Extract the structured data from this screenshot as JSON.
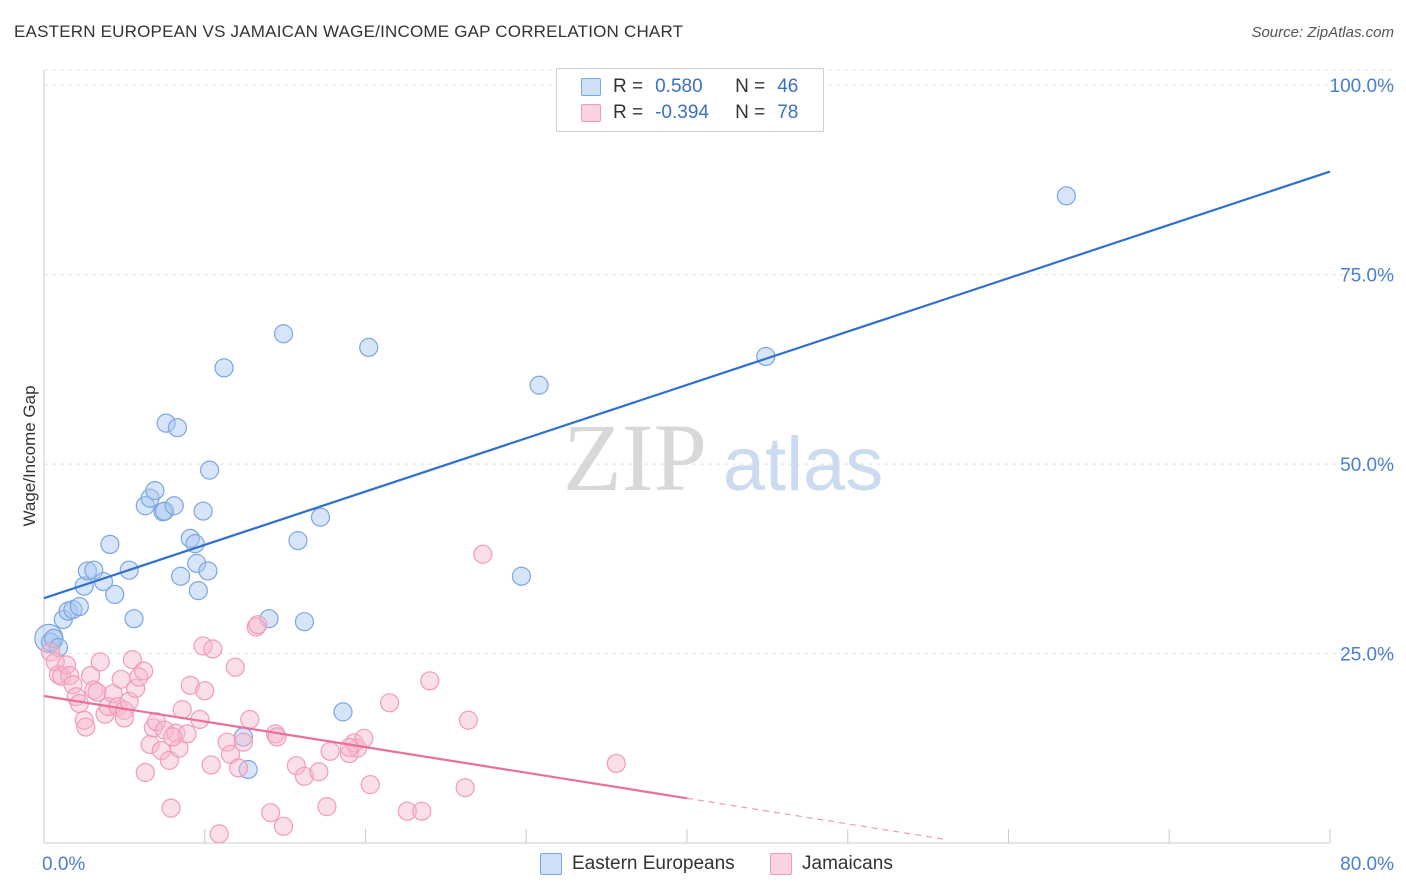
{
  "header": {
    "title": "EASTERN EUROPEAN VS JAMAICAN WAGE/INCOME GAP CORRELATION CHART",
    "source": "Source: ZipAtlas.com"
  },
  "watermark": {
    "zip": "ZIP",
    "atlas": "atlas"
  },
  "legend": {
    "rows": [
      {
        "r_label": "R =",
        "r_value": "0.580",
        "n_label": "N =",
        "n_value": "46",
        "color": "#a9c6ef"
      },
      {
        "r_label": "R =",
        "r_value": "-0.394",
        "n_label": "N =",
        "n_value": "78",
        "color": "#f6b9cc"
      }
    ]
  },
  "bottom_legend": [
    {
      "label": "Eastern Europeans",
      "color": "#a9c6ef"
    },
    {
      "label": "Jamaicans",
      "color": "#f6b9cc"
    }
  ],
  "chart_data": {
    "type": "scatter",
    "title": "EASTERN EUROPEAN VS JAMAICAN WAGE/INCOME GAP CORRELATION CHART",
    "xlabel": "",
    "ylabel": "Wage/Income Gap",
    "xlim": [
      0,
      80
    ],
    "ylim": [
      0,
      102
    ],
    "x_tick_labels": [
      "0.0%",
      "80.0%"
    ],
    "y_ticks": [
      25,
      50,
      75,
      100
    ],
    "y_tick_labels": [
      "25.0%",
      "50.0%",
      "75.0%",
      "100.0%"
    ],
    "grid": true,
    "legend_position": "top-center",
    "series": [
      {
        "name": "Eastern Europeans",
        "color": "#7aa6e2",
        "line_color": "#2f6fce",
        "trend": {
          "x0": 0,
          "y0": 32.3,
          "x1": 80,
          "y1": 88.6
        },
        "points": [
          [
            0.3,
            27.0
          ],
          [
            0.4,
            26.5
          ],
          [
            0.6,
            27.0
          ],
          [
            0.9,
            25.8
          ],
          [
            1.2,
            29.5
          ],
          [
            1.5,
            30.6
          ],
          [
            1.8,
            30.8
          ],
          [
            2.2,
            31.2
          ],
          [
            2.5,
            33.9
          ],
          [
            2.7,
            35.9
          ],
          [
            3.1,
            36.0
          ],
          [
            3.7,
            34.5
          ],
          [
            4.1,
            39.4
          ],
          [
            4.4,
            32.8
          ],
          [
            5.3,
            36.0
          ],
          [
            5.6,
            29.6
          ],
          [
            6.3,
            44.5
          ],
          [
            6.6,
            45.5
          ],
          [
            6.9,
            46.5
          ],
          [
            7.4,
            43.7
          ],
          [
            7.6,
            55.4
          ],
          [
            7.5,
            43.8
          ],
          [
            8.1,
            44.5
          ],
          [
            8.3,
            54.8
          ],
          [
            8.5,
            35.2
          ],
          [
            9.1,
            40.2
          ],
          [
            9.4,
            39.5
          ],
          [
            9.5,
            36.9
          ],
          [
            9.6,
            33.3
          ],
          [
            9.9,
            43.8
          ],
          [
            10.2,
            35.9
          ],
          [
            10.3,
            49.2
          ],
          [
            11.2,
            62.7
          ],
          [
            12.4,
            14.0
          ],
          [
            12.7,
            9.7
          ],
          [
            14.0,
            29.6
          ],
          [
            14.9,
            67.2
          ],
          [
            15.8,
            39.9
          ],
          [
            16.2,
            29.2
          ],
          [
            17.2,
            43.0
          ],
          [
            18.6,
            17.3
          ],
          [
            20.2,
            65.4
          ],
          [
            29.7,
            35.2
          ],
          [
            30.8,
            60.4
          ],
          [
            44.9,
            64.2
          ],
          [
            63.6,
            85.4
          ]
        ]
      },
      {
        "name": "Jamaicans",
        "color": "#f09cb8",
        "line_color": "#e8709a",
        "trend": {
          "x0": 0,
          "y0": 19.4,
          "x1": 40,
          "y1": 5.9
        },
        "trend_dashed_to": {
          "x": 56,
          "y": 0.5
        },
        "points": [
          [
            0.4,
            25.2
          ],
          [
            0.7,
            23.9
          ],
          [
            0.9,
            22.2
          ],
          [
            1.1,
            22.0
          ],
          [
            1.4,
            23.5
          ],
          [
            1.6,
            22.1
          ],
          [
            1.8,
            20.9
          ],
          [
            2.0,
            19.3
          ],
          [
            2.2,
            18.4
          ],
          [
            2.5,
            16.2
          ],
          [
            2.6,
            15.3
          ],
          [
            2.9,
            22.1
          ],
          [
            3.1,
            20.2
          ],
          [
            3.3,
            19.9
          ],
          [
            3.5,
            23.9
          ],
          [
            3.8,
            17.0
          ],
          [
            4.0,
            18.0
          ],
          [
            4.3,
            19.7
          ],
          [
            4.6,
            18.0
          ],
          [
            4.8,
            21.6
          ],
          [
            5.0,
            17.5
          ],
          [
            5.3,
            18.7
          ],
          [
            5.5,
            24.2
          ],
          [
            5.7,
            20.4
          ],
          [
            5.9,
            21.9
          ],
          [
            6.2,
            22.7
          ],
          [
            6.3,
            9.3
          ],
          [
            6.6,
            13.0
          ],
          [
            6.8,
            15.2
          ],
          [
            7.0,
            16.0
          ],
          [
            7.3,
            12.2
          ],
          [
            7.5,
            14.9
          ],
          [
            7.8,
            10.9
          ],
          [
            7.9,
            4.6
          ],
          [
            8.2,
            14.5
          ],
          [
            8.4,
            12.5
          ],
          [
            8.6,
            17.6
          ],
          [
            8.9,
            14.4
          ],
          [
            9.1,
            20.8
          ],
          [
            9.7,
            16.3
          ],
          [
            9.9,
            26.0
          ],
          [
            10.0,
            20.1
          ],
          [
            10.4,
            10.3
          ],
          [
            10.5,
            25.6
          ],
          [
            10.9,
            1.2
          ],
          [
            11.4,
            13.3
          ],
          [
            11.6,
            11.7
          ],
          [
            11.9,
            23.2
          ],
          [
            12.1,
            9.9
          ],
          [
            12.4,
            13.3
          ],
          [
            12.8,
            16.3
          ],
          [
            13.2,
            28.5
          ],
          [
            14.1,
            4.0
          ],
          [
            14.4,
            14.4
          ],
          [
            14.5,
            14.0
          ],
          [
            14.9,
            2.2
          ],
          [
            15.7,
            10.2
          ],
          [
            16.2,
            8.8
          ],
          [
            17.1,
            9.4
          ],
          [
            17.6,
            4.8
          ],
          [
            17.8,
            12.1
          ],
          [
            19.0,
            11.8
          ],
          [
            19.3,
            13.2
          ],
          [
            19.5,
            12.5
          ],
          [
            19.9,
            13.8
          ],
          [
            20.3,
            7.7
          ],
          [
            21.5,
            18.5
          ],
          [
            22.6,
            4.2
          ],
          [
            23.5,
            4.2
          ],
          [
            24.0,
            21.4
          ],
          [
            26.2,
            7.3
          ],
          [
            26.4,
            16.2
          ],
          [
            27.3,
            38.1
          ],
          [
            35.6,
            10.5
          ],
          [
            19.0,
            12.6
          ],
          [
            8.0,
            14.0
          ],
          [
            13.3,
            28.8
          ],
          [
            5.0,
            16.5
          ]
        ]
      }
    ]
  }
}
